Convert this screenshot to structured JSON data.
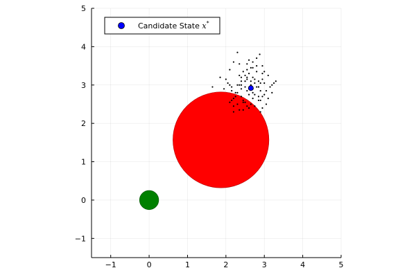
{
  "chart_data": {
    "type": "scatter",
    "title": "",
    "xlabel": "",
    "ylabel": "",
    "xlim": [
      -1.5,
      5
    ],
    "ylim": [
      -1.5,
      5
    ],
    "aspect": "equal",
    "grid": true,
    "x_ticks": [
      -1,
      0,
      1,
      2,
      3,
      4,
      5
    ],
    "y_ticks": [
      -1,
      0,
      1,
      2,
      3,
      4,
      5
    ],
    "x_tick_labels": [
      "−1",
      "0",
      "1",
      "2",
      "3",
      "4",
      "5"
    ],
    "y_tick_labels": [
      "−1",
      "0",
      "1",
      "2",
      "3",
      "4",
      "5"
    ],
    "legend": {
      "position": "top-left",
      "text": "Candidate State ",
      "symbol": "x*"
    },
    "candidate_state": {
      "x": 2.65,
      "y": 2.92,
      "color": "#0000ff",
      "label": "Candidate State x*"
    },
    "obstacle": {
      "center": [
        1.87,
        1.57
      ],
      "radius": 1.25,
      "color": "#ff0000"
    },
    "start": {
      "center": [
        0.0,
        0.0
      ],
      "radius": 0.25,
      "color": "#008000"
    },
    "samples": {
      "color": "#000000",
      "x": [
        2.3,
        2.55,
        2.7,
        2.88,
        2.1,
        2.45,
        2.6,
        2.95,
        3.1,
        2.2,
        2.4,
        2.75,
        2.85,
        2.05,
        2.5,
        2.65,
        3.0,
        2.35,
        2.15,
        2.7,
        2.8,
        2.9,
        2.55,
        2.25,
        2.6,
        3.2,
        2.4,
        2.95,
        2.7,
        2.85,
        2.1,
        2.5,
        3.05,
        2.3,
        2.75,
        2.6,
        2.45,
        2.2,
        2.9,
        3.15,
        2.35,
        2.65,
        2.8,
        2.55,
        2.0,
        2.95,
        3.25,
        2.4,
        2.7,
        2.85,
        2.15,
        2.6,
        3.0,
        2.3,
        2.5,
        2.75,
        2.45,
        2.9,
        2.65,
        2.2,
        1.85,
        2.25,
        2.55,
        3.3,
        2.35,
        2.8,
        2.6,
        2.95,
        2.4,
        2.7,
        3.05,
        2.1,
        2.5,
        2.85,
        2.65,
        2.3,
        2.75,
        3.1,
        2.45,
        2.55,
        1.95,
        2.2,
        2.95,
        2.35,
        3.2,
        2.8,
        2.6,
        2.15,
        2.4,
        2.7,
        1.65,
        2.85,
        2.9,
        2.55,
        3.0
      ],
      "y": [
        3.85,
        3.55,
        3.6,
        3.8,
        3.4,
        3.35,
        3.3,
        3.5,
        3.25,
        3.6,
        3.2,
        3.15,
        3.1,
        3.05,
        3.1,
        3.0,
        3.05,
        3.0,
        2.95,
        2.9,
        2.95,
        2.85,
        2.85,
        2.8,
        2.75,
        3.0,
        2.7,
        2.7,
        2.65,
        2.6,
        2.55,
        2.55,
        2.5,
        2.5,
        2.45,
        2.4,
        2.35,
        2.3,
        2.3,
        2.95,
        3.25,
        3.45,
        3.35,
        3.2,
        3.15,
        3.15,
        3.05,
        3.1,
        3.2,
        2.95,
        2.85,
        2.9,
        2.75,
        2.8,
        2.95,
        3.05,
        2.6,
        2.6,
        2.5,
        2.65,
        3.2,
        2.7,
        2.45,
        3.1,
        3.55,
        3.7,
        3.65,
        2.4,
        2.9,
        2.8,
        2.85,
        3.0,
        3.25,
        2.95,
        3.1,
        3.0,
        2.75,
        2.65,
        2.55,
        3.4,
        2.9,
        2.45,
        3.3,
        2.35,
        2.8,
        3.5,
        2.4,
        2.6,
        3.0,
        3.45,
        2.95,
        2.7,
        3.05,
        3.15,
        3.35
      ]
    }
  }
}
